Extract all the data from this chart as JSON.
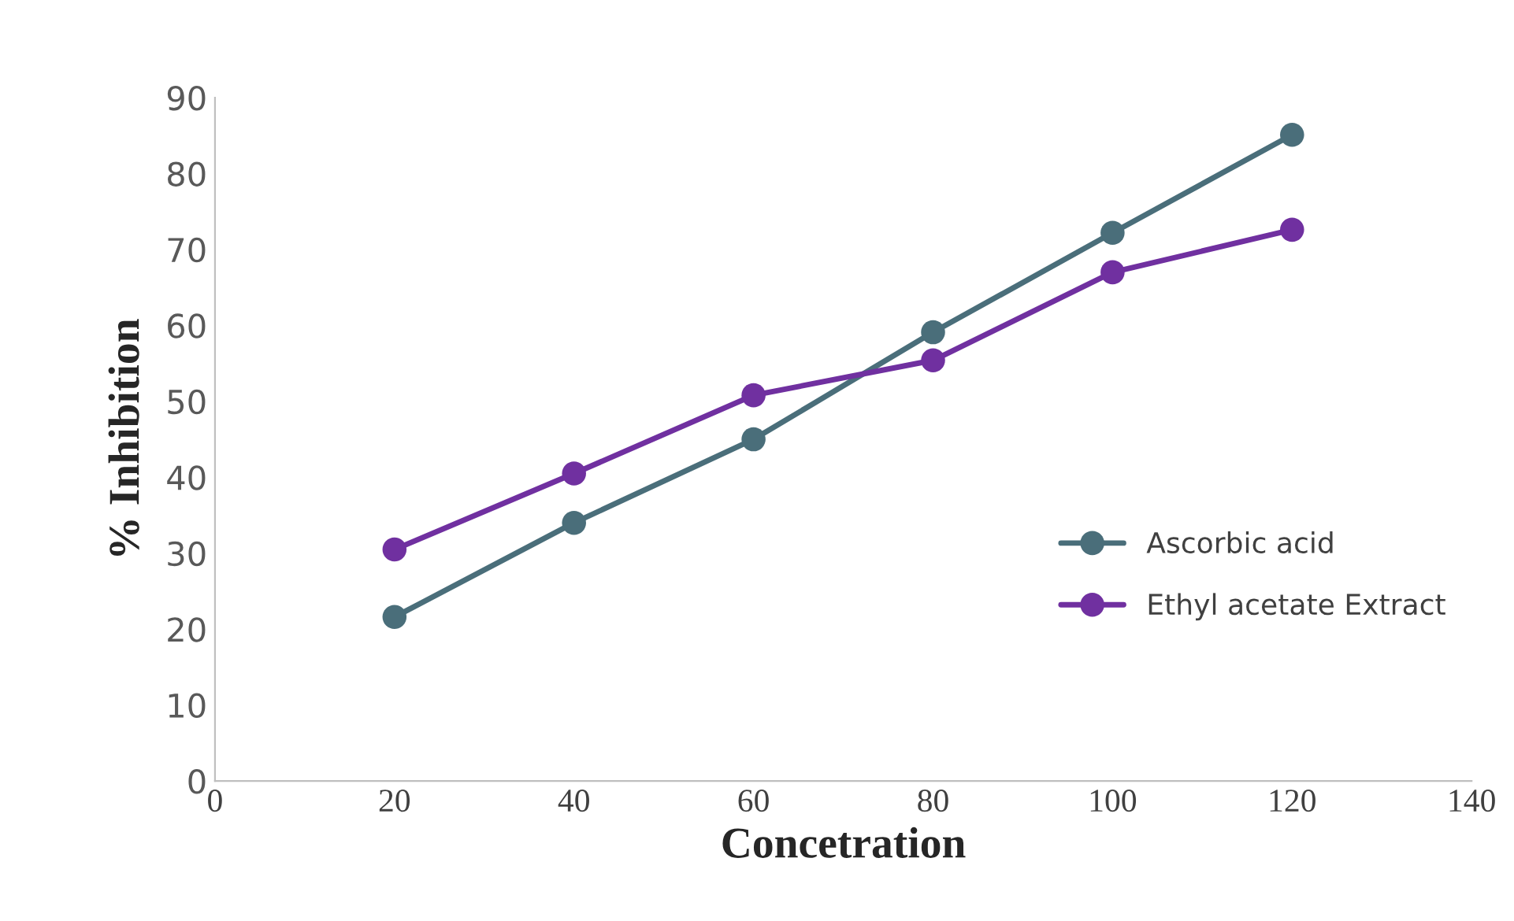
{
  "chart_data": {
    "type": "line",
    "xlabel": "Concetration",
    "ylabel": "% Inhibition",
    "x": [
      20,
      40,
      60,
      80,
      100,
      120
    ],
    "series": [
      {
        "name": "Ascorbic acid",
        "color": "#4a6e7a",
        "values": [
          21.6,
          34.0,
          45.0,
          59.1,
          72.2,
          85.1
        ]
      },
      {
        "name": "Ethyl acetate Extract",
        "color": "#7030a0",
        "values": [
          30.5,
          40.5,
          50.8,
          55.4,
          67.0,
          72.6
        ]
      }
    ],
    "xlim": [
      0,
      140
    ],
    "xticks": [
      0,
      20,
      40,
      60,
      80,
      100,
      120,
      140
    ],
    "ylim": [
      0,
      90
    ],
    "yticks": [
      0,
      10,
      20,
      30,
      40,
      50,
      60,
      70,
      80,
      90
    ],
    "grid": false,
    "legend": "right",
    "marker": "circle",
    "line_style": "solid"
  }
}
